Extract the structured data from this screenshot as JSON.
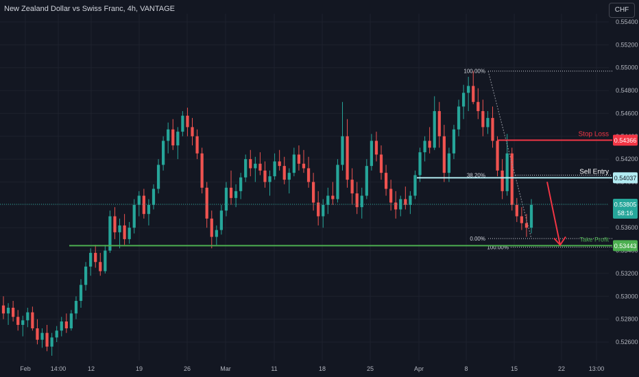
{
  "header": {
    "title": "New Zealand Dollar vs Swiss Franc, 4h, VANTAGE",
    "currency_button": "CHF"
  },
  "colors": {
    "background": "#131722",
    "grid": "#1e222d",
    "up": "#26a69a",
    "down": "#ef5350",
    "text": "#b2b5be",
    "stop_loss": "#f23645",
    "sell_entry": "#b2ebf2",
    "take_profit": "#4caf50"
  },
  "chart_data": {
    "type": "candlestick",
    "y_axis": {
      "ticks": [
        "0.55400",
        "0.55200",
        "0.55000",
        "0.54800",
        "0.54600",
        "0.54400",
        "0.54200",
        "0.54000",
        "0.53800",
        "0.53600",
        "0.53400",
        "0.53200",
        "0.53000",
        "0.52800",
        "0.52600"
      ],
      "range": [
        0.5245,
        0.555
      ]
    },
    "x_axis": {
      "ticks": [
        "Feb",
        "14:00",
        "12",
        "19",
        "26",
        "Mar",
        "11",
        "18",
        "25",
        "Apr",
        "8",
        "15",
        "22",
        "13:00"
      ]
    },
    "current_price": {
      "label": "0.53805",
      "countdown": "58:16",
      "value": 0.53805
    },
    "levels": [
      {
        "name": "Stop Loss",
        "value": 0.54366,
        "label": "0.54366",
        "text": "Stop Loss"
      },
      {
        "name": "Sell Entry",
        "value": 0.54037,
        "label": "0.54037",
        "text": "Sell Entry"
      },
      {
        "name": "Take Profit",
        "value": 0.53443,
        "label": "0.53443",
        "text": "Take Profit"
      }
    ],
    "fibonacci": [
      {
        "label": "100.00%",
        "value": 0.5497
      },
      {
        "label": "38.20%",
        "value": 0.5406
      },
      {
        "label": "0.00%",
        "value": 0.53505
      },
      {
        "label": "100.00%",
        "value": 0.5343
      }
    ],
    "candles": [
      [
        0.5292,
        0.53,
        0.528,
        0.5285
      ],
      [
        0.5285,
        0.5294,
        0.5275,
        0.529
      ],
      [
        0.529,
        0.5296,
        0.5278,
        0.5282
      ],
      [
        0.5282,
        0.5288,
        0.527,
        0.5275
      ],
      [
        0.5275,
        0.5283,
        0.5265,
        0.5279
      ],
      [
        0.5279,
        0.529,
        0.5273,
        0.5286
      ],
      [
        0.5286,
        0.5291,
        0.527,
        0.5272
      ],
      [
        0.5272,
        0.528,
        0.5258,
        0.5262
      ],
      [
        0.5262,
        0.5272,
        0.5255,
        0.5268
      ],
      [
        0.5268,
        0.5275,
        0.5252,
        0.5256
      ],
      [
        0.5256,
        0.5268,
        0.5248,
        0.5264
      ],
      [
        0.5264,
        0.5274,
        0.526,
        0.527
      ],
      [
        0.527,
        0.5282,
        0.5265,
        0.5278
      ],
      [
        0.5278,
        0.5285,
        0.5268,
        0.5272
      ],
      [
        0.5272,
        0.5288,
        0.527,
        0.5285
      ],
      [
        0.5285,
        0.53,
        0.528,
        0.5296
      ],
      [
        0.5296,
        0.5315,
        0.529,
        0.531
      ],
      [
        0.531,
        0.533,
        0.5305,
        0.5326
      ],
      [
        0.5326,
        0.5342,
        0.5318,
        0.5338
      ],
      [
        0.5338,
        0.5345,
        0.5325,
        0.533
      ],
      [
        0.533,
        0.5338,
        0.5318,
        0.5322
      ],
      [
        0.5322,
        0.5345,
        0.532,
        0.534
      ],
      [
        0.534,
        0.5375,
        0.5338,
        0.537
      ],
      [
        0.537,
        0.5378,
        0.535,
        0.5356
      ],
      [
        0.5356,
        0.5368,
        0.5342,
        0.5362
      ],
      [
        0.5362,
        0.5372,
        0.5345,
        0.535
      ],
      [
        0.535,
        0.5365,
        0.5346,
        0.536
      ],
      [
        0.536,
        0.5385,
        0.5355,
        0.538
      ],
      [
        0.538,
        0.5392,
        0.537,
        0.5388
      ],
      [
        0.5388,
        0.5394,
        0.5368,
        0.5372
      ],
      [
        0.5372,
        0.5385,
        0.5362,
        0.538
      ],
      [
        0.538,
        0.5398,
        0.5376,
        0.5394
      ],
      [
        0.5394,
        0.542,
        0.539,
        0.5415
      ],
      [
        0.5415,
        0.544,
        0.541,
        0.5436
      ],
      [
        0.5436,
        0.5452,
        0.5425,
        0.5446
      ],
      [
        0.5446,
        0.5455,
        0.5428,
        0.5432
      ],
      [
        0.5432,
        0.5448,
        0.542,
        0.5444
      ],
      [
        0.5444,
        0.5462,
        0.544,
        0.5458
      ],
      [
        0.5458,
        0.5465,
        0.544,
        0.5448
      ],
      [
        0.5448,
        0.5456,
        0.5432,
        0.544
      ],
      [
        0.544,
        0.5446,
        0.542,
        0.5425
      ],
      [
        0.5425,
        0.543,
        0.539,
        0.5395
      ],
      [
        0.5395,
        0.54,
        0.536,
        0.5368
      ],
      [
        0.5368,
        0.5375,
        0.5342,
        0.5352
      ],
      [
        0.5352,
        0.5362,
        0.5345,
        0.5358
      ],
      [
        0.5358,
        0.538,
        0.5354,
        0.5375
      ],
      [
        0.5375,
        0.54,
        0.537,
        0.5395
      ],
      [
        0.5395,
        0.541,
        0.538,
        0.5386
      ],
      [
        0.5386,
        0.5398,
        0.5378,
        0.5392
      ],
      [
        0.5392,
        0.5408,
        0.5385,
        0.5404
      ],
      [
        0.5404,
        0.5424,
        0.54,
        0.542
      ],
      [
        0.542,
        0.5428,
        0.5405,
        0.5412
      ],
      [
        0.5412,
        0.5422,
        0.54,
        0.5416
      ],
      [
        0.5416,
        0.5426,
        0.5406,
        0.541
      ],
      [
        0.541,
        0.5418,
        0.5395,
        0.54
      ],
      [
        0.54,
        0.541,
        0.5388,
        0.5405
      ],
      [
        0.5405,
        0.5425,
        0.5402,
        0.5418
      ],
      [
        0.5418,
        0.5428,
        0.541,
        0.5414
      ],
      [
        0.5414,
        0.5422,
        0.5398,
        0.5402
      ],
      [
        0.5402,
        0.5412,
        0.539,
        0.5408
      ],
      [
        0.5408,
        0.543,
        0.5405,
        0.5424
      ],
      [
        0.5424,
        0.5432,
        0.541,
        0.5416
      ],
      [
        0.5416,
        0.5428,
        0.5408,
        0.5412
      ],
      [
        0.5412,
        0.5422,
        0.5395,
        0.54
      ],
      [
        0.54,
        0.5408,
        0.5375,
        0.5382
      ],
      [
        0.5382,
        0.5392,
        0.5362,
        0.537
      ],
      [
        0.537,
        0.5385,
        0.536,
        0.538
      ],
      [
        0.538,
        0.5395,
        0.5372,
        0.5388
      ],
      [
        0.5388,
        0.54,
        0.538,
        0.5385
      ],
      [
        0.5385,
        0.542,
        0.5382,
        0.5415
      ],
      [
        0.5415,
        0.547,
        0.541,
        0.544
      ],
      [
        0.544,
        0.5455,
        0.5395,
        0.5402
      ],
      [
        0.5402,
        0.5412,
        0.538,
        0.539
      ],
      [
        0.539,
        0.54,
        0.5372,
        0.5378
      ],
      [
        0.5378,
        0.5395,
        0.5368,
        0.5388
      ],
      [
        0.5388,
        0.542,
        0.5385,
        0.5414
      ],
      [
        0.5414,
        0.5442,
        0.541,
        0.5436
      ],
      [
        0.5436,
        0.5444,
        0.5418,
        0.5424
      ],
      [
        0.5424,
        0.5432,
        0.5402,
        0.5408
      ],
      [
        0.5408,
        0.5415,
        0.5388,
        0.5394
      ],
      [
        0.5394,
        0.5402,
        0.5375,
        0.5382
      ],
      [
        0.5382,
        0.5392,
        0.5368,
        0.5376
      ],
      [
        0.5376,
        0.5388,
        0.537,
        0.5385
      ],
      [
        0.5385,
        0.5396,
        0.5376,
        0.538
      ],
      [
        0.538,
        0.5392,
        0.5372,
        0.5388
      ],
      [
        0.5388,
        0.541,
        0.5385,
        0.5406
      ],
      [
        0.5406,
        0.543,
        0.54,
        0.5426
      ],
      [
        0.5426,
        0.544,
        0.5418,
        0.5436
      ],
      [
        0.5436,
        0.5448,
        0.5425,
        0.543
      ],
      [
        0.543,
        0.5475,
        0.5428,
        0.5462
      ],
      [
        0.5462,
        0.547,
        0.543,
        0.544
      ],
      [
        0.544,
        0.545,
        0.54,
        0.5408
      ],
      [
        0.5408,
        0.543,
        0.54,
        0.5425
      ],
      [
        0.5425,
        0.545,
        0.542,
        0.5446
      ],
      [
        0.5446,
        0.5472,
        0.544,
        0.5466
      ],
      [
        0.5466,
        0.5485,
        0.5455,
        0.5478
      ],
      [
        0.5478,
        0.5492,
        0.5462,
        0.5484
      ],
      [
        0.5484,
        0.5497,
        0.5468,
        0.547
      ],
      [
        0.547,
        0.5482,
        0.5455,
        0.5462
      ],
      [
        0.5462,
        0.5472,
        0.544,
        0.5448
      ],
      [
        0.5448,
        0.5462,
        0.5442,
        0.5456
      ],
      [
        0.5456,
        0.5466,
        0.543,
        0.5436
      ],
      [
        0.5436,
        0.544,
        0.5405,
        0.541
      ],
      [
        0.541,
        0.542,
        0.5385,
        0.5392
      ],
      [
        0.5392,
        0.5442,
        0.5388,
        0.5425
      ],
      [
        0.5425,
        0.543,
        0.5375,
        0.538
      ],
      [
        0.538,
        0.5386,
        0.5365,
        0.537
      ],
      [
        0.537,
        0.5378,
        0.5358,
        0.5364
      ],
      [
        0.5364,
        0.5372,
        0.5352,
        0.536
      ],
      [
        0.536,
        0.5385,
        0.5355,
        0.538
      ]
    ]
  }
}
